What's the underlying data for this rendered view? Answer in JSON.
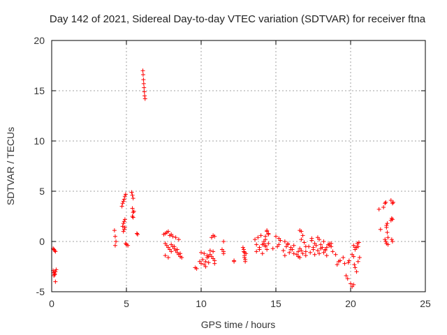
{
  "chart_data": {
    "type": "scatter",
    "title": "Day 142 of 2021, Sidereal Day-to-day VTEC variation (SDTVAR) for receiver ftna",
    "xlabel": "GPS time / hours",
    "ylabel": "SDTVAR / TECUs",
    "xlim": [
      0,
      25
    ],
    "ylim": [
      -5,
      20
    ],
    "xticks": [
      0,
      5,
      10,
      15,
      20,
      25
    ],
    "yticks": [
      -5,
      0,
      5,
      10,
      15,
      20
    ],
    "grid": true,
    "marker": "+",
    "color": "#ff0000",
    "series": [
      {
        "name": "SDTVAR",
        "x": [
          0.1,
          0.15,
          0.2,
          0.25,
          0.1,
          0.15,
          0.2,
          0.25,
          0.3,
          0.15,
          0.2,
          0.25,
          4.2,
          4.25,
          4.3,
          4.25,
          4.7,
          4.75,
          4.8,
          4.85,
          4.9,
          4.95,
          4.75,
          4.8,
          4.85,
          4.9,
          4.8,
          4.85,
          4.9,
          4.95,
          5.0,
          5.1,
          5.35,
          5.4,
          5.45,
          5.4,
          5.45,
          5.5,
          5.4,
          5.45,
          5.7,
          5.75,
          6.1,
          6.12,
          6.14,
          6.16,
          6.18,
          6.2,
          6.22,
          6.25,
          7.5,
          7.6,
          7.7,
          7.8,
          7.9,
          8.0,
          7.6,
          7.7,
          7.8,
          7.9,
          8.0,
          8.1,
          8.2,
          8.3,
          8.4,
          8.5,
          8.6,
          7.6,
          7.8,
          8.0,
          8.2,
          8.4,
          8.6,
          8.7,
          8.1,
          8.3,
          8.5,
          9.6,
          9.7,
          9.9,
          10.0,
          10.1,
          10.2,
          10.3,
          10.4,
          10.5,
          10.6,
          10.7,
          10.8,
          10.9,
          10.0,
          10.2,
          10.4,
          10.6,
          10.8,
          10.9,
          10.7,
          10.8,
          10.9,
          10.3,
          10.5,
          11.4,
          11.5,
          11.5,
          11.5,
          12.2,
          12.2,
          12.8,
          12.85,
          12.9,
          12.95,
          13.0,
          12.85,
          12.9,
          12.95,
          12.9,
          13.6,
          13.7,
          13.8,
          13.9,
          14.0,
          14.1,
          14.2,
          14.3,
          14.4,
          14.5,
          13.7,
          13.9,
          14.1,
          14.3,
          14.5,
          14.2,
          14.4,
          14.3,
          14.4,
          14.3,
          14.5,
          14.8,
          15.0,
          15.2,
          15.3,
          15.2,
          15.1,
          15.5,
          15.6,
          15.7,
          15.8,
          15.9,
          16.0,
          16.1,
          16.2,
          15.6,
          15.8,
          16.0,
          16.2,
          16.4,
          16.5,
          16.6,
          16.7,
          16.5,
          16.6,
          16.7,
          16.8,
          16.9,
          17.0,
          16.8,
          17.0,
          16.6,
          16.7,
          17.0,
          17.2,
          17.4,
          17.6,
          17.8,
          18.0,
          18.2,
          18.4,
          18.6,
          18.8,
          17.3,
          17.5,
          17.7,
          17.9,
          18.1,
          18.3,
          18.5,
          18.7,
          17.4,
          17.8,
          18.2,
          18.6,
          17.6,
          18.0,
          18.4,
          17.5,
          17.9,
          18.3,
          18.7,
          19.0,
          19.1,
          19.2,
          19.3,
          19.5,
          19.6,
          19.7,
          19.8,
          19.85,
          19.9,
          20.0,
          20.1,
          20.2,
          20.1,
          20.2,
          20.25,
          20.3,
          20.4,
          20.5,
          20.6,
          20.3,
          20.4,
          20.5,
          20.45,
          20.55,
          20.2,
          20.3,
          21.9,
          22.0,
          22.2,
          22.3,
          22.35,
          22.4,
          22.45,
          22.5,
          22.3,
          22.35,
          22.4,
          22.5,
          22.4,
          22.45,
          22.7,
          22.75,
          22.8,
          22.85,
          22.7,
          22.8,
          22.75,
          22.8
        ],
        "y": [
          -0.7,
          -0.8,
          -0.9,
          -1.0,
          -2.9,
          -3.1,
          -3.3,
          -3.0,
          -2.8,
          -3.4,
          -3.2,
          -4.0,
          1.1,
          0.5,
          0.0,
          -0.4,
          3.5,
          3.8,
          4.0,
          4.2,
          4.5,
          4.7,
          1.5,
          1.8,
          2.0,
          2.2,
          1.0,
          1.2,
          1.4,
          -0.2,
          -0.3,
          -0.4,
          4.9,
          4.6,
          4.3,
          3.3,
          2.9,
          3.0,
          2.5,
          2.4,
          0.8,
          0.7,
          17.0,
          16.6,
          16.1,
          15.7,
          15.3,
          14.9,
          14.5,
          14.2,
          0.7,
          0.8,
          0.9,
          1.0,
          0.6,
          0.7,
          -0.2,
          -0.4,
          -0.6,
          -0.8,
          -1.0,
          -0.5,
          -0.7,
          -0.9,
          -1.1,
          -1.3,
          -1.5,
          -1.4,
          -1.6,
          -0.3,
          -0.5,
          -0.8,
          -1.2,
          -1.6,
          0.5,
          0.4,
          0.2,
          -2.6,
          -2.7,
          -2.0,
          -2.2,
          -1.8,
          -2.3,
          -2.5,
          -1.6,
          -2.1,
          -1.3,
          -1.5,
          -1.7,
          -1.9,
          -1.1,
          -1.2,
          -1.4,
          -0.9,
          -1.0,
          -2.2,
          0.4,
          0.6,
          0.5,
          -2.0,
          -1.5,
          -0.8,
          -1.0,
          -1.2,
          0.0,
          -2.0,
          -1.9,
          -0.6,
          -1.0,
          -1.4,
          -1.8,
          -1.2,
          -0.8,
          -1.6,
          -2.0,
          -1.1,
          0.2,
          -0.3,
          0.4,
          -0.8,
          0.6,
          -1.2,
          0.0,
          -0.5,
          1.0,
          0.7,
          -1.0,
          -0.6,
          -0.3,
          0.5,
          0.8,
          -0.2,
          1.1,
          -0.4,
          -0.8,
          0.2,
          -0.2,
          -0.7,
          0.5,
          0.3,
          0.1,
          -0.3,
          -0.5,
          -0.9,
          -1.4,
          -0.5,
          -0.3,
          -1.1,
          -0.6,
          -0.8,
          -1.2,
          0.0,
          -0.2,
          -0.8,
          -0.4,
          -1.3,
          -1.0,
          1.1,
          1.0,
          -1.5,
          -1.6,
          0.2,
          0.6,
          -0.1,
          -0.5,
          -1.2,
          -1.4,
          -0.7,
          -0.9,
          -1.0,
          -0.5,
          0.3,
          -0.2,
          0.4,
          -0.3,
          0.0,
          -0.6,
          -0.4,
          -1.0,
          -1.1,
          -0.8,
          -0.4,
          0.2,
          -0.6,
          -0.9,
          -0.3,
          -0.5,
          0.1,
          -0.9,
          -1.1,
          -0.2,
          -1.3,
          -0.7,
          -1.4,
          -0.6,
          -1.2,
          -0.8,
          -0.2,
          -1.3,
          -2.3,
          -2.0,
          -1.9,
          -1.6,
          -2.2,
          -3.4,
          -3.7,
          -2.1,
          -1.9,
          -4.2,
          -4.5,
          -4.3,
          -1.3,
          -1.5,
          -2.3,
          -2.6,
          -3.0,
          -2.0,
          -1.6,
          -0.8,
          -0.6,
          -0.5,
          -0.2,
          -0.1,
          -0.4,
          -0.6,
          3.2,
          1.2,
          3.4,
          3.8,
          3.9,
          1.4,
          0.9,
          0.4,
          0.2,
          0.0,
          -0.2,
          -0.3,
          1.6,
          1.8,
          2.1,
          2.3,
          2.2,
          3.9,
          4.1,
          3.8,
          0.2,
          0.0
        ]
      }
    ]
  }
}
